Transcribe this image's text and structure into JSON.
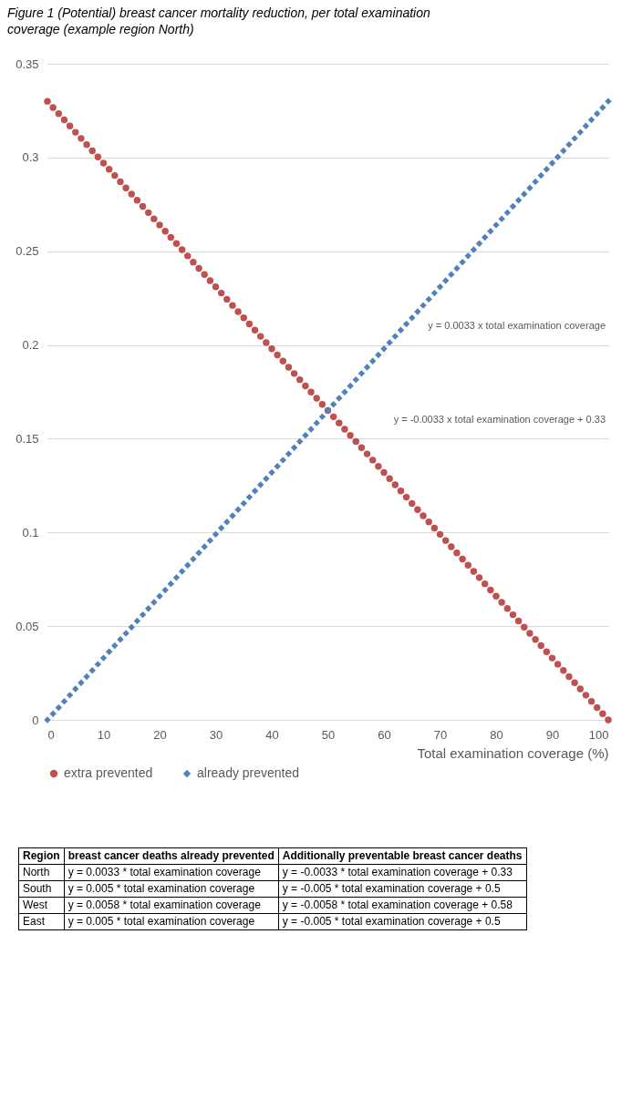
{
  "chart_data": {
    "type": "scatter",
    "title": "Figure 1 (Potential) breast cancer mortality reduction, per total examination coverage (example region North)",
    "xlabel": "Total examination coverage (%)",
    "x": [
      0,
      1,
      2,
      3,
      4,
      5,
      6,
      7,
      8,
      9,
      10,
      11,
      12,
      13,
      14,
      15,
      16,
      17,
      18,
      19,
      20,
      21,
      22,
      23,
      24,
      25,
      26,
      27,
      28,
      29,
      30,
      31,
      32,
      33,
      34,
      35,
      36,
      37,
      38,
      39,
      40,
      41,
      42,
      43,
      44,
      45,
      46,
      47,
      48,
      49,
      50,
      51,
      52,
      53,
      54,
      55,
      56,
      57,
      58,
      59,
      60,
      61,
      62,
      63,
      64,
      65,
      66,
      67,
      68,
      69,
      70,
      71,
      72,
      73,
      74,
      75,
      76,
      77,
      78,
      79,
      80,
      81,
      82,
      83,
      84,
      85,
      86,
      87,
      88,
      89,
      90,
      91,
      92,
      93,
      94,
      95,
      96,
      97,
      98,
      99,
      100
    ],
    "series": [
      {
        "name": "extra prevented",
        "color": "#c0504d",
        "marker": "circle",
        "values": [
          0.33,
          0.3267,
          0.3234,
          0.3201,
          0.3168,
          0.3135,
          0.3102,
          0.3069,
          0.3036,
          0.3003,
          0.297,
          0.2937,
          0.2904,
          0.2871,
          0.2838,
          0.2805,
          0.2772,
          0.2739,
          0.2706,
          0.2673,
          0.264,
          0.2607,
          0.2574,
          0.2541,
          0.2508,
          0.2475,
          0.2442,
          0.2409,
          0.2376,
          0.2343,
          0.231,
          0.2277,
          0.2244,
          0.2211,
          0.2178,
          0.2145,
          0.2112,
          0.2079,
          0.2046,
          0.2013,
          0.198,
          0.1947,
          0.1914,
          0.1881,
          0.1848,
          0.1815,
          0.1782,
          0.1749,
          0.1716,
          0.1683,
          0.165,
          0.1617,
          0.1584,
          0.1551,
          0.1518,
          0.1485,
          0.1452,
          0.1419,
          0.1386,
          0.1353,
          0.132,
          0.1287,
          0.1254,
          0.1221,
          0.1188,
          0.1155,
          0.1122,
          0.1089,
          0.1056,
          0.1023,
          0.099,
          0.0957,
          0.0924,
          0.0891,
          0.0858,
          0.0825,
          0.0792,
          0.0759,
          0.0726,
          0.0693,
          0.066,
          0.0627,
          0.0594,
          0.0561,
          0.0528,
          0.0495,
          0.0462,
          0.0429,
          0.0396,
          0.0363,
          0.033,
          0.0297,
          0.0264,
          0.0231,
          0.0198,
          0.0165,
          0.0132,
          0.0099,
          0.0066,
          0.0033,
          0
        ]
      },
      {
        "name": "already prevented",
        "color": "#4f81bd",
        "marker": "diamond",
        "values": [
          0,
          0.0033,
          0.0066,
          0.0099,
          0.0132,
          0.0165,
          0.0198,
          0.0231,
          0.0264,
          0.0297,
          0.033,
          0.0363,
          0.0396,
          0.0429,
          0.0462,
          0.0495,
          0.0528,
          0.0561,
          0.0594,
          0.0627,
          0.066,
          0.0693,
          0.0726,
          0.0759,
          0.0792,
          0.0825,
          0.0858,
          0.0891,
          0.0924,
          0.0957,
          0.099,
          0.1023,
          0.1056,
          0.1089,
          0.1122,
          0.1155,
          0.1188,
          0.1221,
          0.1254,
          0.1287,
          0.132,
          0.1353,
          0.1386,
          0.1419,
          0.1452,
          0.1485,
          0.1518,
          0.1551,
          0.1584,
          0.1617,
          0.165,
          0.1683,
          0.1716,
          0.1749,
          0.1782,
          0.1815,
          0.1848,
          0.1881,
          0.1914,
          0.1947,
          0.198,
          0.2013,
          0.2046,
          0.2079,
          0.2112,
          0.2145,
          0.2178,
          0.2211,
          0.2244,
          0.2277,
          0.231,
          0.2343,
          0.2376,
          0.2409,
          0.2442,
          0.2475,
          0.2508,
          0.2541,
          0.2574,
          0.2607,
          0.264,
          0.2673,
          0.2706,
          0.2739,
          0.2772,
          0.2805,
          0.2838,
          0.2871,
          0.2904,
          0.2937,
          0.297,
          0.3003,
          0.3036,
          0.3069,
          0.3102,
          0.3135,
          0.3168,
          0.3201,
          0.3234,
          0.3267,
          0.33
        ]
      }
    ],
    "xlim": [
      0,
      100
    ],
    "xticks": [
      0,
      10,
      20,
      30,
      40,
      50,
      60,
      70,
      80,
      90,
      100
    ],
    "ylim": [
      0,
      0.35
    ],
    "yticks": [
      0,
      0.05,
      0.1,
      0.15,
      0.2,
      0.25,
      0.3,
      0.35
    ],
    "grid": "y",
    "legend": "bottom",
    "annotations": [
      "y = 0.0033 x total examination coverage",
      "y = -0.0033 x total examination coverage + 0.33",
      "Region",
      "breast cancer deaths already prevented",
      "Additionally preventable breast cancer deaths",
      "North",
      "y = 0.0033 * total examination coverage",
      "y = -0.0033 * total examination coverage + 0.33",
      "South",
      "y = 0.005 * total examination coverage",
      "y = -0.005 * total examination coverage + 0.5",
      "West",
      "y = 0.0058 * total examination coverage",
      "y = -0.0058 * total examination coverage + 0.58",
      "East",
      "y = 0.005 * total examination coverage",
      "y = -0.005 * total examination coverage + 0.5"
    ]
  }
}
